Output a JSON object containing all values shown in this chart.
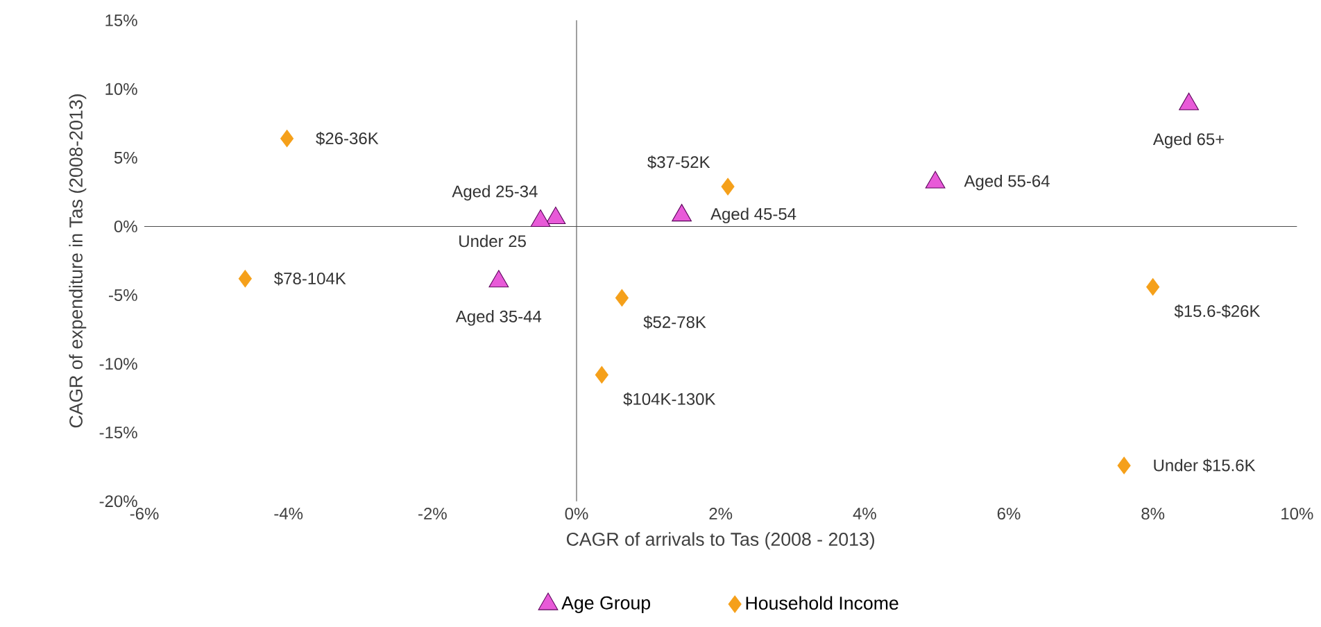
{
  "chart_data": {
    "type": "scatter",
    "xlabel": "CAGR of arrivals to Tas (2008 - 2013)",
    "ylabel": "CAGR of expenditure in Tas  (2008-2013)",
    "xlim": [
      -6,
      10
    ],
    "ylim": [
      -20,
      15
    ],
    "xticks": [
      {
        "value": -6,
        "label": "-6%"
      },
      {
        "value": -4,
        "label": "-4%"
      },
      {
        "value": -2,
        "label": "-2%"
      },
      {
        "value": 0,
        "label": "0%"
      },
      {
        "value": 2,
        "label": "2%"
      },
      {
        "value": 4,
        "label": "4%"
      },
      {
        "value": 6,
        "label": "6%"
      },
      {
        "value": 8,
        "label": "8%"
      },
      {
        "value": 10,
        "label": "10%"
      }
    ],
    "yticks": [
      {
        "value": -20,
        "label": "-20%"
      },
      {
        "value": -15,
        "label": "-15%"
      },
      {
        "value": -10,
        "label": "-10%"
      },
      {
        "value": -5,
        "label": "-5%"
      },
      {
        "value": 0,
        "label": "0%"
      },
      {
        "value": 5,
        "label": "5%"
      },
      {
        "value": 10,
        "label": "10%"
      },
      {
        "value": 15,
        "label": "15%"
      }
    ],
    "legend": "bottom",
    "series": [
      {
        "name": "Age Group",
        "color": "#e85ad8",
        "marker": "triangle",
        "x": [
          8.5,
          4.98,
          1.46,
          -0.29,
          -0.5,
          -1.08
        ],
        "values": [
          8.9,
          3.2,
          0.8,
          0.6,
          0.4,
          -4.0
        ]
      },
      {
        "name": "Household Income",
        "color": "#f5a01a",
        "marker": "diamond",
        "x": [
          -4.02,
          -4.6,
          2.1,
          0.63,
          0.35,
          8.0,
          7.6
        ],
        "values": [
          6.4,
          -3.8,
          2.9,
          -5.2,
          -10.8,
          -4.4,
          -17.4
        ]
      }
    ],
    "annotations": [
      {
        "text": "Aged 65+",
        "x": 8.5,
        "y": 8.9
      },
      {
        "text": "Aged 55-64",
        "x": 4.98,
        "y": 3.2
      },
      {
        "text": "Aged 45-54",
        "x": 1.46,
        "y": 0.8
      },
      {
        "text": "Aged  25-34",
        "x": -0.29,
        "y": 0.6
      },
      {
        "text": "Under 25",
        "x": -0.5,
        "y": 0.4
      },
      {
        "text": "Aged 35-44",
        "x": -1.08,
        "y": -4.0
      },
      {
        "text": "$26-36K",
        "x": -4.02,
        "y": 6.4
      },
      {
        "text": "$78-104K",
        "x": -4.6,
        "y": -3.8
      },
      {
        "text": "$37-52K",
        "x": 2.1,
        "y": 2.9
      },
      {
        "text": "$52-78K",
        "x": 0.63,
        "y": -5.2
      },
      {
        "text": "$104K-130K",
        "x": 0.35,
        "y": -10.8
      },
      {
        "text": "$15.6-$26K",
        "x": 8.0,
        "y": -4.4
      },
      {
        "text": "Under $15.6K",
        "x": 7.6,
        "y": -17.4
      }
    ]
  }
}
